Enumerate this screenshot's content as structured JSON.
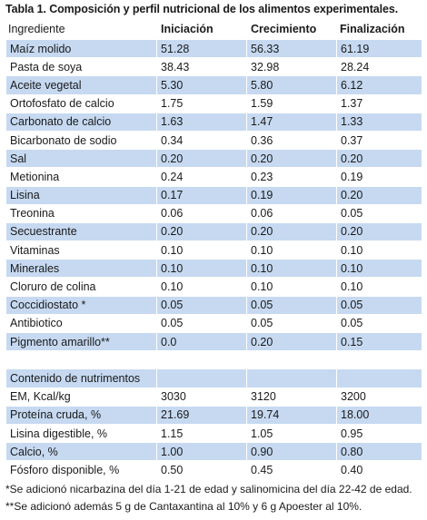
{
  "title": "Tabla 1. Composición y perfil nutricional de los alimentos experimentales.",
  "headers": [
    "Ingrediente",
    "Iniciación",
    "Crecimiento",
    "Finalización"
  ],
  "ingredients": [
    [
      "Maíz molido",
      "51.28",
      "56.33",
      "61.19"
    ],
    [
      "Pasta de soya",
      "38.43",
      "32.98",
      "28.24"
    ],
    [
      "Aceite vegetal",
      "5.30",
      "5.80",
      "6.12"
    ],
    [
      "Ortofosfato de calcio",
      "1.75",
      "1.59",
      "1.37"
    ],
    [
      "Carbonato de calcio",
      "1.63",
      "1.47",
      "1.33"
    ],
    [
      "Bicarbonato de sodio",
      "0.34",
      "0.36",
      "0.37"
    ],
    [
      "Sal",
      "0.20",
      "0.20",
      "0.20"
    ],
    [
      "Metionina",
      "0.24",
      "0.23",
      "0.19"
    ],
    [
      "Lisina",
      "0.17",
      "0.19",
      "0.20"
    ],
    [
      "Treonina",
      "0.06",
      "0.06",
      "0.05"
    ],
    [
      "Secuestrante",
      "0.20",
      "0.20",
      "0.20"
    ],
    [
      "Vitaminas",
      "0.10",
      "0.10",
      "0.10"
    ],
    [
      "Minerales",
      "0.10",
      "0.10",
      "0.10"
    ],
    [
      "Cloruro de colina",
      "0.10",
      "0.10",
      "0.10"
    ],
    [
      "Coccidiostato *",
      "0.05",
      "0.05",
      "0.05"
    ],
    [
      "Antibiotico",
      "0.05",
      "0.05",
      "0.05"
    ],
    [
      "Pigmento amarillo**",
      "0.0",
      "0.20",
      "0.15"
    ]
  ],
  "section_label": "Contenido de nutrimentos",
  "nutrients": [
    [
      "EM, Kcal/kg",
      "3030",
      "3120",
      "3200"
    ],
    [
      "Proteína cruda, %",
      "21.69",
      "19.74",
      "18.00"
    ],
    [
      "Lisina digestible, %",
      "1.15",
      "1.05",
      "0.95"
    ],
    [
      "Calcio, %",
      "1.00",
      "0.90",
      "0.80"
    ],
    [
      "Fósforo disponible, %",
      "0.50",
      "0.45",
      "0.40"
    ]
  ],
  "footnotes": [
    "*Se adicionó nicarbazina del día 1-21 de edad y salinomicina del día 22-42 de edad.",
    "**Se adicionó además 5 g de Cantaxantina  al 10% y 6 g Apoester al 10%."
  ],
  "colors": {
    "band": "#c6d9f1"
  }
}
